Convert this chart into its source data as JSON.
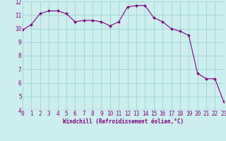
{
  "x": [
    0,
    1,
    2,
    3,
    4,
    5,
    6,
    7,
    8,
    9,
    10,
    11,
    12,
    13,
    14,
    15,
    16,
    17,
    18,
    19,
    20,
    21,
    22,
    23
  ],
  "y": [
    9.9,
    10.3,
    11.1,
    11.3,
    11.3,
    11.1,
    10.5,
    10.6,
    10.6,
    10.5,
    10.2,
    10.5,
    11.6,
    11.7,
    11.7,
    10.8,
    10.5,
    10.0,
    9.8,
    9.5,
    6.7,
    6.3,
    6.3,
    4.6
  ],
  "line_color": "#800080",
  "bg_color": "#b0dede",
  "plot_bg_color": "#cceeee",
  "grid_color": "#99cccc",
  "xlabel": "Windchill (Refroidissement éolien,°C)",
  "xlim": [
    0,
    23
  ],
  "ylim": [
    4,
    12
  ],
  "yticks": [
    4,
    5,
    6,
    7,
    8,
    9,
    10,
    11,
    12
  ],
  "xticks": [
    0,
    1,
    2,
    3,
    4,
    5,
    6,
    7,
    8,
    9,
    10,
    11,
    12,
    13,
    14,
    15,
    16,
    17,
    18,
    19,
    20,
    21,
    22,
    23
  ],
  "tick_color": "#800080",
  "label_fontsize": 5.5,
  "tick_fontsize": 5.5
}
